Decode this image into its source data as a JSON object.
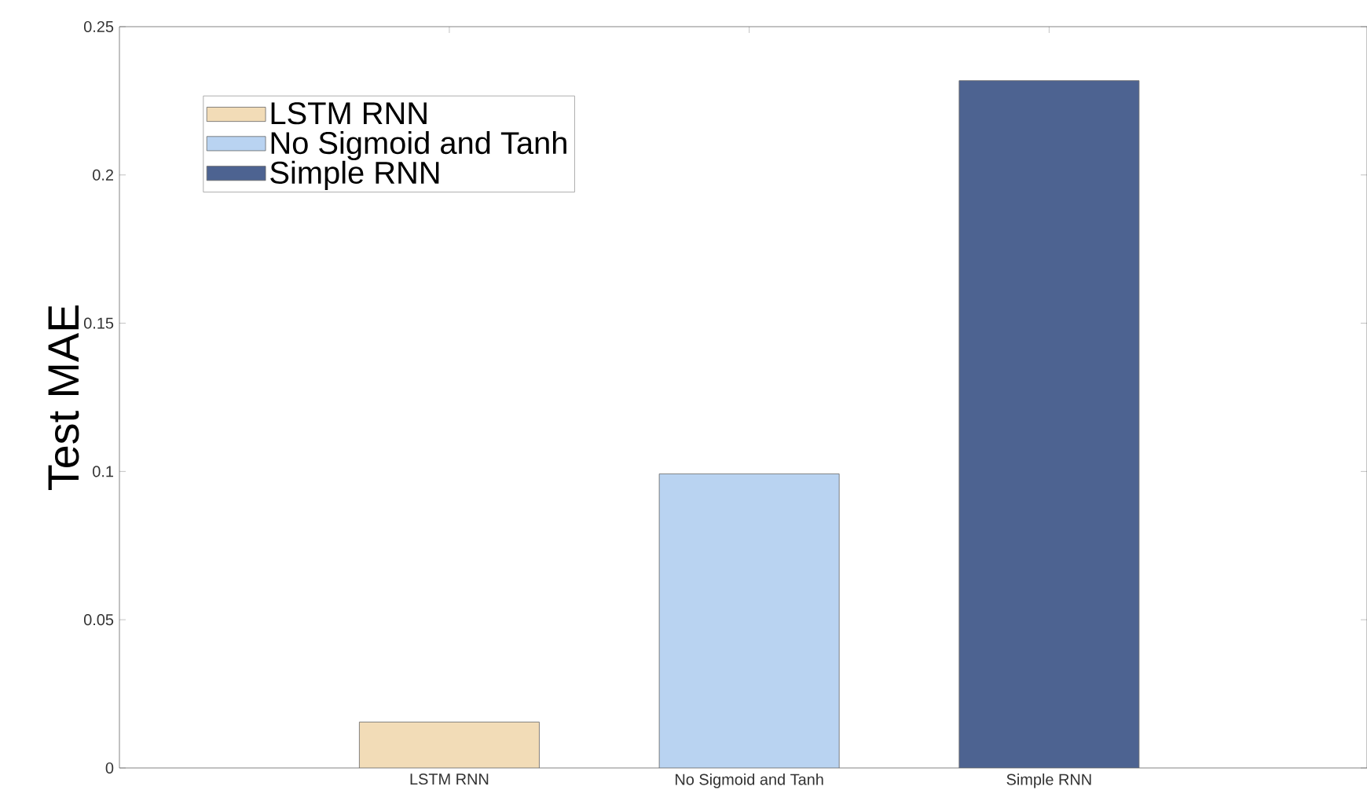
{
  "chart_data": {
    "type": "bar",
    "ylabel": "Test MAE",
    "categories": [
      "LSTM RNN",
      "No Sigmoid and Tanh",
      "Simple RNN"
    ],
    "series": [
      {
        "name": "LSTM RNN",
        "color": "#f2dcb7",
        "values": [
          0.0155,
          null,
          null
        ]
      },
      {
        "name": "No Sigmoid and Tanh",
        "color": "#b9d3f1",
        "values": [
          null,
          0.0992,
          null
        ]
      },
      {
        "name": "Simple RNN",
        "color": "#4d6391",
        "values": [
          null,
          null,
          0.2318
        ]
      }
    ],
    "ylim": [
      0,
      0.25
    ],
    "yticks": [
      0,
      0.05,
      0.1,
      0.15,
      0.2,
      0.25
    ],
    "legend": "top left"
  }
}
